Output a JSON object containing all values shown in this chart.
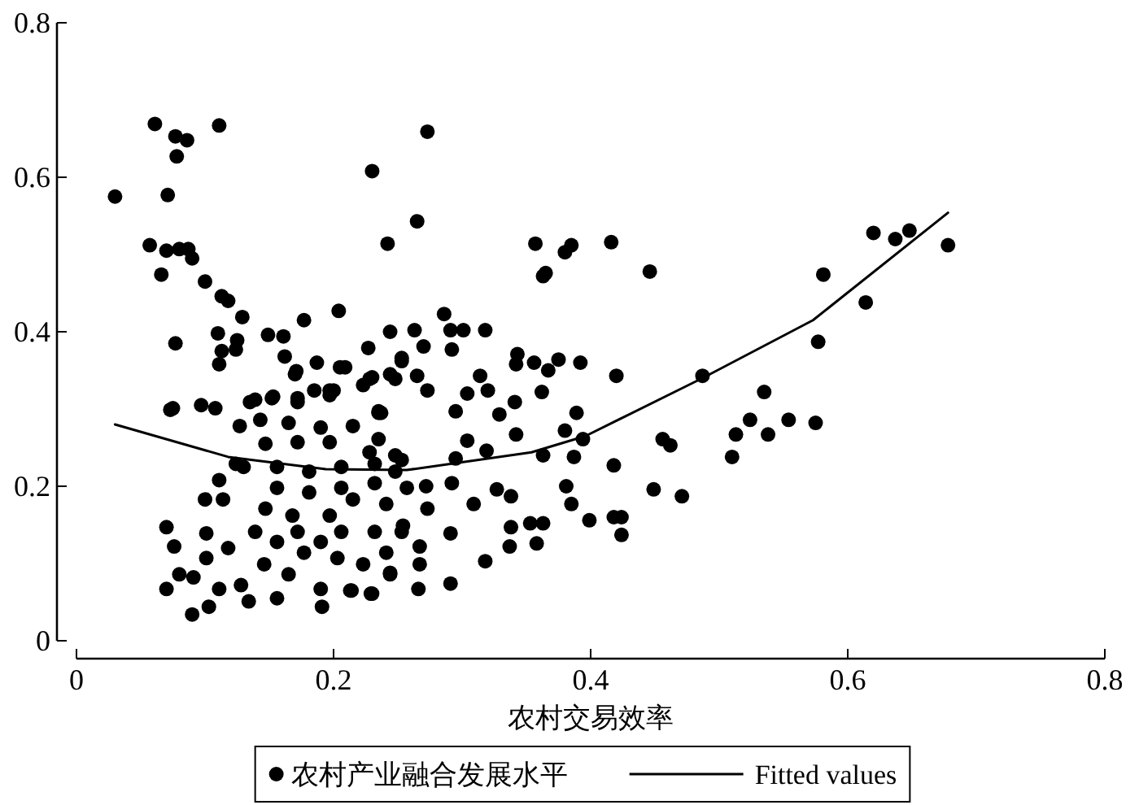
{
  "chart_data": {
    "type": "scatter",
    "xlabel": "农村交易效率",
    "xlim": [
      0,
      0.8
    ],
    "ylim": [
      0,
      0.8
    ],
    "xticks": [
      0,
      0.2,
      0.4,
      0.6,
      0.8
    ],
    "yticks": [
      0,
      0.2,
      0.4,
      0.6,
      0.8
    ],
    "legend": "bottom",
    "series": [
      {
        "name": "农村产业融合发展水平",
        "marker": "circle",
        "color": "#000000",
        "x": [
          0.061,
          0.111,
          0.077,
          0.086,
          0.078,
          0.03,
          0.071,
          0.23,
          0.265,
          0.242,
          0.057,
          0.07,
          0.08,
          0.087,
          0.09,
          0.066,
          0.1,
          0.113,
          0.118,
          0.129,
          0.177,
          0.204,
          0.11,
          0.077,
          0.125,
          0.149,
          0.161,
          0.113,
          0.124,
          0.111,
          0.162,
          0.187,
          0.17,
          0.205,
          0.227,
          0.244,
          0.263,
          0.075,
          0.097,
          0.108,
          0.139,
          0.153,
          0.172,
          0.185,
          0.197,
          0.223,
          0.235,
          0.253,
          0.273,
          0.357,
          0.38,
          0.385,
          0.365,
          0.363,
          0.416,
          0.446,
          0.286,
          0.301,
          0.318,
          0.291,
          0.27,
          0.292,
          0.253,
          0.343,
          0.342,
          0.356,
          0.375,
          0.392,
          0.367,
          0.42,
          0.487,
          0.362,
          0.314,
          0.32,
          0.304,
          0.265,
          0.23,
          0.244,
          0.2,
          0.273,
          0.341,
          0.389,
          0.237,
          0.295,
          0.329,
          0.38,
          0.394,
          0.363,
          0.387,
          0.418,
          0.342,
          0.319,
          0.381,
          0.385,
          0.399,
          0.418,
          0.424,
          0.424,
          0.327,
          0.338,
          0.309,
          0.338,
          0.353,
          0.363,
          0.358,
          0.337,
          0.318,
          0.291,
          0.266,
          0.267,
          0.267,
          0.291,
          0.295,
          0.304,
          0.292,
          0.272,
          0.273,
          0.254,
          0.244,
          0.23,
          0.214,
          0.248,
          0.62,
          0.637,
          0.648,
          0.678,
          0.581,
          0.614,
          0.577,
          0.535,
          0.524,
          0.513,
          0.538,
          0.554,
          0.575,
          0.51,
          0.456,
          0.462,
          0.449,
          0.471,
          0.073,
          0.07,
          0.076,
          0.07,
          0.09,
          0.103,
          0.08,
          0.091,
          0.101,
          0.101,
          0.111,
          0.1,
          0.114,
          0.111,
          0.127,
          0.135,
          0.124,
          0.118,
          0.134,
          0.156,
          0.191,
          0.19,
          0.213,
          0.229,
          0.244,
          0.128,
          0.146,
          0.165,
          0.177,
          0.203,
          0.223,
          0.241,
          0.139,
          0.156,
          0.172,
          0.19,
          0.206,
          0.232,
          0.253,
          0.147,
          0.168,
          0.197,
          0.215,
          0.241,
          0.156,
          0.181,
          0.206,
          0.232,
          0.257,
          0.13,
          0.156,
          0.181,
          0.206,
          0.232,
          0.253,
          0.147,
          0.172,
          0.197,
          0.228,
          0.248,
          0.143,
          0.165,
          0.19,
          0.215,
          0.235,
          0.152,
          0.172,
          0.197,
          0.235,
          0.171,
          0.209,
          0.228,
          0.248
        ],
        "values": [
          0.669,
          0.667,
          0.653,
          0.648,
          0.627,
          0.575,
          0.577,
          0.608,
          0.543,
          0.514,
          0.512,
          0.505,
          0.507,
          0.507,
          0.495,
          0.474,
          0.465,
          0.446,
          0.44,
          0.419,
          0.415,
          0.427,
          0.398,
          0.385,
          0.389,
          0.396,
          0.394,
          0.375,
          0.377,
          0.358,
          0.368,
          0.36,
          0.345,
          0.354,
          0.379,
          0.4,
          0.402,
          0.301,
          0.305,
          0.301,
          0.312,
          0.316,
          0.314,
          0.324,
          0.324,
          0.331,
          0.295,
          0.362,
          0.659,
          0.514,
          0.503,
          0.512,
          0.476,
          0.472,
          0.516,
          0.478,
          0.423,
          0.402,
          0.402,
          0.402,
          0.381,
          0.377,
          0.366,
          0.371,
          0.358,
          0.36,
          0.364,
          0.36,
          0.35,
          0.343,
          0.343,
          0.322,
          0.343,
          0.324,
          0.32,
          0.343,
          0.341,
          0.345,
          0.324,
          0.324,
          0.309,
          0.295,
          0.295,
          0.297,
          0.293,
          0.272,
          0.261,
          0.24,
          0.238,
          0.227,
          0.267,
          0.246,
          0.2,
          0.177,
          0.156,
          0.16,
          0.16,
          0.137,
          0.196,
          0.187,
          0.177,
          0.147,
          0.152,
          0.152,
          0.126,
          0.122,
          0.103,
          0.074,
          0.067,
          0.099,
          0.122,
          0.139,
          0.236,
          0.259,
          0.204,
          0.2,
          0.171,
          0.149,
          0.088,
          0.061,
          0.065,
          0.219,
          0.528,
          0.52,
          0.531,
          0.512,
          0.474,
          0.438,
          0.387,
          0.322,
          0.286,
          0.267,
          0.267,
          0.286,
          0.282,
          0.238,
          0.261,
          0.253,
          0.196,
          0.187,
          0.299,
          0.147,
          0.122,
          0.067,
          0.034,
          0.044,
          0.086,
          0.082,
          0.139,
          0.107,
          0.067,
          0.183,
          0.183,
          0.208,
          0.278,
          0.309,
          0.229,
          0.12,
          0.051,
          0.055,
          0.044,
          0.067,
          0.065,
          0.061,
          0.086,
          0.072,
          0.099,
          0.086,
          0.114,
          0.107,
          0.099,
          0.114,
          0.141,
          0.128,
          0.141,
          0.128,
          0.141,
          0.141,
          0.141,
          0.171,
          0.162,
          0.162,
          0.183,
          0.177,
          0.198,
          0.192,
          0.198,
          0.204,
          0.198,
          0.225,
          0.225,
          0.219,
          0.225,
          0.229,
          0.234,
          0.255,
          0.257,
          0.257,
          0.244,
          0.24,
          0.286,
          0.282,
          0.276,
          0.278,
          0.261,
          0.314,
          0.309,
          0.318,
          0.297,
          0.349,
          0.354,
          0.339,
          0.339
        ]
      },
      {
        "name": "Fitted values",
        "type": "line",
        "color": "#000000",
        "x": [
          0.03,
          0.118,
          0.194,
          0.257,
          0.354,
          0.396,
          0.487,
          0.573,
          0.678
        ],
        "values": [
          0.28,
          0.238,
          0.222,
          0.221,
          0.244,
          0.265,
          0.34,
          0.415,
          0.554
        ]
      }
    ]
  }
}
